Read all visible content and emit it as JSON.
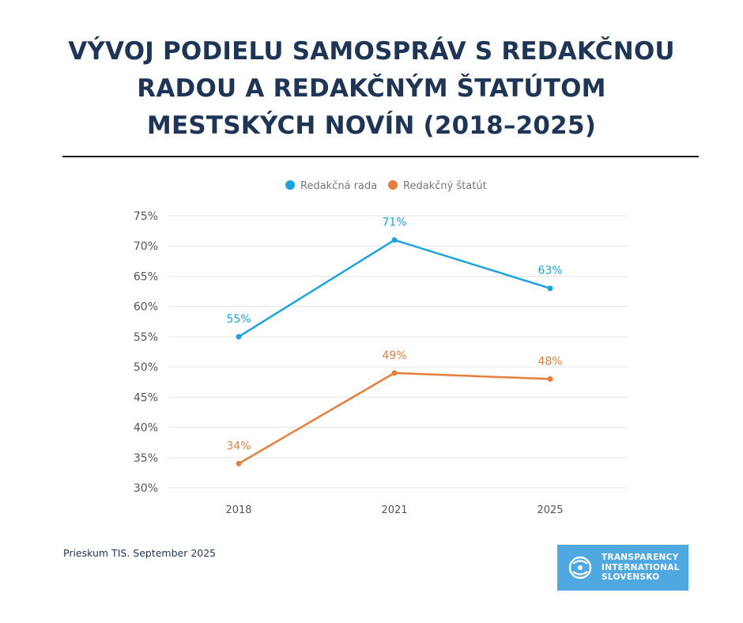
{
  "title_lines": [
    "VÝVOJ PODIELU SAMOSPRÁV S REDAKČNOU",
    "RADOU A REDAKČNÝM ŠTATÚTOM",
    "MESTSKÝCH NOVÍN (2018–2025)"
  ],
  "source": "Prieskum TIS. September 2025",
  "logo": {
    "lines": [
      "TRANSPARENCY",
      "INTERNATIONAL",
      "SLOVENSKO"
    ],
    "icon": "ti-logo-icon"
  },
  "colors": {
    "title": "#1e3556",
    "rada": "#1aa3e0",
    "statut": "#e67e3a",
    "grid": "#e6e6e6",
    "logo_bg": "#4fa8e0"
  },
  "chart_data": {
    "type": "line",
    "categories": [
      "2018",
      "2021",
      "2025"
    ],
    "series": [
      {
        "name": "Redakčná rada",
        "values": [
          55,
          71,
          63
        ],
        "labels": [
          "55%",
          "71%",
          "63%"
        ],
        "color": "#1aa3e0"
      },
      {
        "name": "Redakčný štatút",
        "values": [
          34,
          49,
          48
        ],
        "labels": [
          "34%",
          "49%",
          "48%"
        ],
        "color": "#e67e3a"
      }
    ],
    "ylim": [
      30,
      75
    ],
    "yticks": [
      30,
      35,
      40,
      45,
      50,
      55,
      60,
      65,
      70,
      75
    ],
    "ytick_labels": [
      "30%",
      "35%",
      "40%",
      "45%",
      "50%",
      "55%",
      "60%",
      "65%",
      "70%",
      "75%"
    ],
    "xlabel": "",
    "ylabel": "",
    "legend": "top-center",
    "grid": true
  }
}
